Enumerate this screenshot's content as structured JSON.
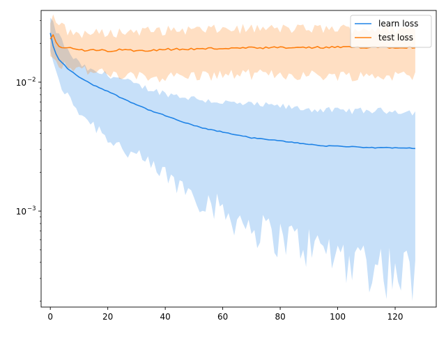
{
  "chart_data": {
    "type": "line",
    "title": "",
    "xlabel": "",
    "ylabel": "",
    "yscale": "log",
    "xlim": [
      -3.2,
      134.3
    ],
    "ylim": [
      0.00018,
      0.036
    ],
    "grid": false,
    "legend_position": "top-right",
    "x_ticks": [
      0,
      20,
      40,
      60,
      80,
      100,
      120
    ],
    "x_tick_labels": [
      "0",
      "20",
      "40",
      "60",
      "80",
      "100",
      "120"
    ],
    "y_major_ticks": [
      0.001,
      0.01
    ],
    "y_tick_labels": [
      "10^-3",
      "10^-2"
    ],
    "y_tick_label_parts": [
      {
        "base": "10",
        "exp": "−3"
      },
      {
        "base": "10",
        "exp": "−2"
      }
    ],
    "y_minor_ticks": [
      0.0002,
      0.0003,
      0.0004,
      0.0005,
      0.0006,
      0.0007,
      0.0008,
      0.0009,
      0.002,
      0.003,
      0.004,
      0.005,
      0.006,
      0.007,
      0.008,
      0.009,
      0.02,
      0.03
    ],
    "x_range": [
      0,
      127
    ],
    "series": [
      {
        "name": "learn loss",
        "color": "#1f83e6",
        "band_color": "#1f83e6",
        "x": [
          0,
          1,
          2,
          3,
          4,
          5,
          6,
          8,
          10,
          12,
          15,
          20,
          25,
          30,
          35,
          40,
          45,
          50,
          55,
          60,
          65,
          70,
          75,
          80,
          85,
          90,
          95,
          100,
          105,
          110,
          115,
          120,
          125,
          127
        ],
        "mean": [
          0.024,
          0.019,
          0.0165,
          0.015,
          0.0142,
          0.0135,
          0.0128,
          0.0118,
          0.011,
          0.0103,
          0.0095,
          0.0085,
          0.0075,
          0.0067,
          0.006,
          0.0055,
          0.005,
          0.0046,
          0.0043,
          0.0041,
          0.0039,
          0.0037,
          0.0036,
          0.0035,
          0.0034,
          0.0033,
          0.0032,
          0.0032,
          0.00315,
          0.0031,
          0.0031,
          0.0031,
          0.0031,
          0.00305
        ],
        "upper": [
          0.031,
          0.028,
          0.025,
          0.023,
          0.021,
          0.019,
          0.0175,
          0.0155,
          0.014,
          0.013,
          0.012,
          0.0115,
          0.0105,
          0.0095,
          0.0088,
          0.0082,
          0.0078,
          0.0075,
          0.0072,
          0.007,
          0.0068,
          0.0067,
          0.0066,
          0.0065,
          0.0063,
          0.0062,
          0.0061,
          0.006,
          0.006,
          0.006,
          0.006,
          0.006,
          0.0059,
          0.0058
        ],
        "lower": [
          0.018,
          0.014,
          0.0115,
          0.01,
          0.0092,
          0.0085,
          0.0078,
          0.0068,
          0.006,
          0.0054,
          0.0047,
          0.0038,
          0.0031,
          0.0026,
          0.0022,
          0.0019,
          0.0016,
          0.0014,
          0.0012,
          0.001,
          0.00088,
          0.00078,
          0.0007,
          0.00065,
          0.0006,
          0.00055,
          0.0005,
          0.00047,
          0.00045,
          0.00042,
          0.0004,
          0.00037,
          0.00034,
          0.00031
        ]
      },
      {
        "name": "test loss",
        "color": "#ff7f0e",
        "band_color": "#ff7f0e",
        "x": [
          0,
          1,
          2,
          3,
          4,
          5,
          6,
          8,
          10,
          12,
          15,
          20,
          25,
          30,
          35,
          40,
          45,
          50,
          55,
          60,
          65,
          70,
          75,
          80,
          85,
          90,
          95,
          100,
          105,
          110,
          115,
          120,
          125,
          127
        ],
        "mean": [
          0.0218,
          0.0235,
          0.0205,
          0.0193,
          0.0185,
          0.0187,
          0.0182,
          0.0183,
          0.0178,
          0.0175,
          0.0177,
          0.0175,
          0.0178,
          0.0176,
          0.0178,
          0.018,
          0.018,
          0.0181,
          0.0182,
          0.0183,
          0.0183,
          0.0184,
          0.0184,
          0.0185,
          0.0185,
          0.0185,
          0.0186,
          0.0186,
          0.0186,
          0.0187,
          0.0187,
          0.0187,
          0.0187,
          0.0187
        ],
        "upper": [
          0.03,
          0.032,
          0.03,
          0.028,
          0.027,
          0.026,
          0.025,
          0.024,
          0.024,
          0.024,
          0.024,
          0.024,
          0.0245,
          0.025,
          0.025,
          0.0252,
          0.0255,
          0.0255,
          0.0255,
          0.0258,
          0.026,
          0.026,
          0.026,
          0.026,
          0.026,
          0.026,
          0.026,
          0.026,
          0.026,
          0.026,
          0.026,
          0.026,
          0.026,
          0.026
        ],
        "lower": [
          0.016,
          0.017,
          0.015,
          0.0142,
          0.0138,
          0.0136,
          0.0134,
          0.0132,
          0.0128,
          0.0124,
          0.012,
          0.0115,
          0.0112,
          0.011,
          0.011,
          0.011,
          0.0112,
          0.0112,
          0.0113,
          0.0114,
          0.0115,
          0.0115,
          0.0115,
          0.0115,
          0.0114,
          0.0114,
          0.0113,
          0.0113,
          0.0113,
          0.0112,
          0.0112,
          0.0112,
          0.0112,
          0.0112
        ]
      }
    ]
  }
}
